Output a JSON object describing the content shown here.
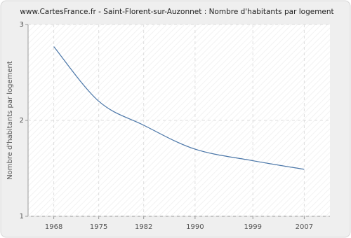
{
  "chart_data": {
    "type": "line",
    "title": "www.CartesFrance.fr - Saint-Florent-sur-Auzonnet : Nombre d'habitants par logement",
    "y_label": "Nombre d'habitants par logement",
    "x": [
      1968,
      1975,
      1982,
      1990,
      1999,
      2007
    ],
    "series": [
      {
        "name": "Nombre d'habitants par logement",
        "color": "#4a76a8",
        "values": [
          2.77,
          2.2,
          1.95,
          1.7,
          1.58,
          1.49
        ]
      }
    ],
    "xlim": [
      1964,
      2011
    ],
    "xticks": [
      1968,
      1975,
      1982,
      1990,
      1999,
      2007
    ],
    "ylim": [
      1,
      3
    ],
    "yticks": [
      1,
      2,
      3
    ],
    "grid": true
  }
}
